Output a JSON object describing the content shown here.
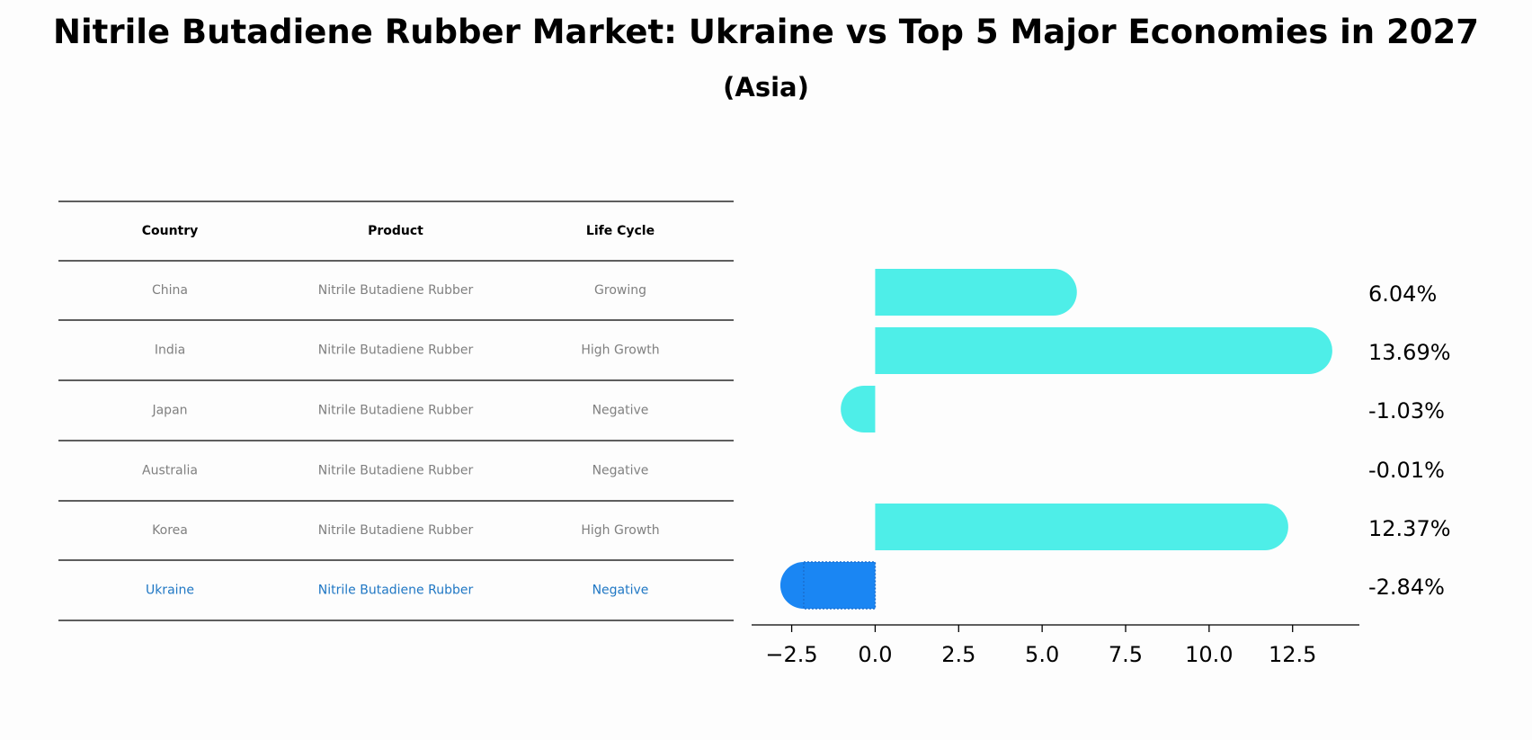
{
  "title": "Nitrile Butadiene Rubber Market: Ukraine vs Top 5 Major Economies in 2027",
  "subtitle": "(Asia)",
  "table": {
    "headers": [
      "Country",
      "Product",
      "Life Cycle"
    ],
    "rows": [
      [
        "China",
        "Nitrile Butadiene Rubber",
        "Growing"
      ],
      [
        "India",
        "Nitrile Butadiene Rubber",
        "High Growth"
      ],
      [
        "Japan",
        "Nitrile Butadiene Rubber",
        "Negative"
      ],
      [
        "Australia",
        "Nitrile Butadiene Rubber",
        "Negative"
      ],
      [
        "Korea",
        "Nitrile Butadiene Rubber",
        "High Growth"
      ],
      [
        "Ukraine",
        "Nitrile Butadiene Rubber",
        "Negative"
      ]
    ],
    "highlight_row": 5
  },
  "chart_data": {
    "type": "bar",
    "orientation": "horizontal",
    "categories": [
      "China",
      "India",
      "Japan",
      "Australia",
      "Korea",
      "Ukraine"
    ],
    "values": [
      6.04,
      13.69,
      -1.03,
      -0.01,
      12.37,
      -2.84
    ],
    "value_labels": [
      "6.04%",
      "13.69%",
      "-1.03%",
      "-0.01%",
      "12.37%",
      "-2.84%"
    ],
    "xlim": [
      -3.7,
      14.5
    ],
    "xticks": [
      -2.5,
      0.0,
      2.5,
      5.0,
      7.5,
      10.0,
      12.5
    ],
    "xtick_labels": [
      "−2.5",
      "0.0",
      "2.5",
      "5.0",
      "7.5",
      "10.0",
      "12.5"
    ],
    "highlight_index": 5,
    "grid": false
  },
  "colors": {
    "bar": "#4eeee8",
    "highlight_bar": "#1a86f3",
    "table_text": "#808080",
    "table_highlight": "#1f77c4",
    "text": "#000000"
  }
}
